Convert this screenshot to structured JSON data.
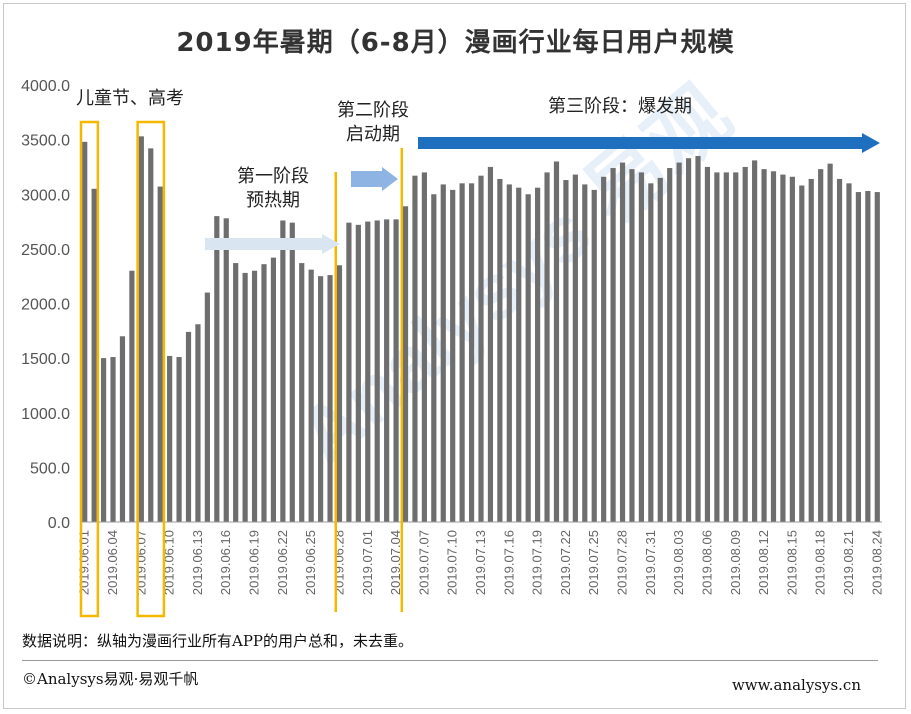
{
  "footnote": "数据说明：纵轴为漫画行业所有APP的用户总和，未去重。",
  "copyright": "©Analysys易观·易观千帆",
  "website": "www.analysys.cn",
  "chart_data": {
    "type": "bar",
    "title": "2019年暑期（6-8月）漫画行业每日用户规模",
    "ylim": [
      0,
      4000
    ],
    "y_ticks": [
      "0.0",
      "500.0",
      "1000.0",
      "1500.0",
      "2000.0",
      "2500.0",
      "3000.0",
      "3500.0",
      "4000.0"
    ],
    "grid": false,
    "categories": [
      "2019.06.01",
      "2019.06.02",
      "2019.06.03",
      "2019.06.04",
      "2019.06.05",
      "2019.06.06",
      "2019.06.07",
      "2019.06.08",
      "2019.06.09",
      "2019.06.10",
      "2019.06.11",
      "2019.06.12",
      "2019.06.13",
      "2019.06.14",
      "2019.06.15",
      "2019.06.16",
      "2019.06.17",
      "2019.06.18",
      "2019.06.19",
      "2019.06.20",
      "2019.06.21",
      "2019.06.22",
      "2019.06.23",
      "2019.06.24",
      "2019.06.25",
      "2019.06.26",
      "2019.06.27",
      "2019.06.28",
      "2019.06.29",
      "2019.06.30",
      "2019.07.01",
      "2019.07.02",
      "2019.07.03",
      "2019.07.04",
      "2019.07.05",
      "2019.07.06",
      "2019.07.07",
      "2019.07.08",
      "2019.07.09",
      "2019.07.10",
      "2019.07.11",
      "2019.07.12",
      "2019.07.13",
      "2019.07.14",
      "2019.07.15",
      "2019.07.16",
      "2019.07.17",
      "2019.07.18",
      "2019.07.19",
      "2019.07.20",
      "2019.07.21",
      "2019.07.22",
      "2019.07.23",
      "2019.07.24",
      "2019.07.25",
      "2019.07.26",
      "2019.07.27",
      "2019.07.28",
      "2019.07.29",
      "2019.07.30",
      "2019.07.31",
      "2019.08.01",
      "2019.08.02",
      "2019.08.03",
      "2019.08.04",
      "2019.08.05",
      "2019.08.06",
      "2019.08.07",
      "2019.08.08",
      "2019.08.09",
      "2019.08.10",
      "2019.08.11",
      "2019.08.12",
      "2019.08.13",
      "2019.08.14",
      "2019.08.15",
      "2019.08.16",
      "2019.08.17",
      "2019.08.18",
      "2019.08.19",
      "2019.08.20",
      "2019.08.21",
      "2019.08.22",
      "2019.08.23",
      "2019.08.24"
    ],
    "tick_labels": [
      "2019.06.01",
      "2019.06.04",
      "2019.06.07",
      "2019.06.10",
      "2019.06.13",
      "2019.06.16",
      "2019.06.19",
      "2019.06.22",
      "2019.06.25",
      "2019.06.28",
      "2019.07.01",
      "2019.07.04",
      "2019.07.07",
      "2019.07.10",
      "2019.07.13",
      "2019.07.16",
      "2019.07.19",
      "2019.07.22",
      "2019.07.25",
      "2019.07.28",
      "2019.07.31",
      "2019.08.03",
      "2019.08.06",
      "2019.08.09",
      "2019.08.12",
      "2019.08.15",
      "2019.08.18",
      "2019.08.21",
      "2019.08.24"
    ],
    "values": [
      3480,
      3050,
      1500,
      1510,
      1700,
      2300,
      3530,
      3420,
      3070,
      1520,
      1510,
      1740,
      1810,
      2100,
      2800,
      2780,
      2370,
      2280,
      2300,
      2360,
      2420,
      2760,
      2740,
      2370,
      2310,
      2250,
      2260,
      2350,
      2740,
      2720,
      2750,
      2760,
      2770,
      2770,
      2890,
      3170,
      3200,
      3000,
      3090,
      3040,
      3100,
      3100,
      3170,
      3250,
      3140,
      3090,
      3060,
      3000,
      3060,
      3200,
      3300,
      3130,
      3180,
      3090,
      3040,
      3160,
      3240,
      3290,
      3230,
      3200,
      3100,
      3150,
      3240,
      3290,
      3330,
      3350,
      3250,
      3200,
      3200,
      3200,
      3250,
      3310,
      3230,
      3210,
      3180,
      3160,
      3080,
      3140,
      3230,
      3280,
      3140,
      3100,
      3020,
      3030,
      3020
    ],
    "bar_color": "#6e6e6e",
    "annotations": [
      {
        "text": "儿童节、高考"
      },
      {
        "text": "第一阶段\n预热期"
      },
      {
        "text": "第二阶段\n启动期"
      },
      {
        "text": "第三阶段：爆发期"
      }
    ],
    "highlight_color": "#f5b800",
    "arrow_colors": {
      "phase1": "#d9e6f2",
      "phase2": "#8db4e2",
      "phase3": "#1f6fbf"
    }
  }
}
